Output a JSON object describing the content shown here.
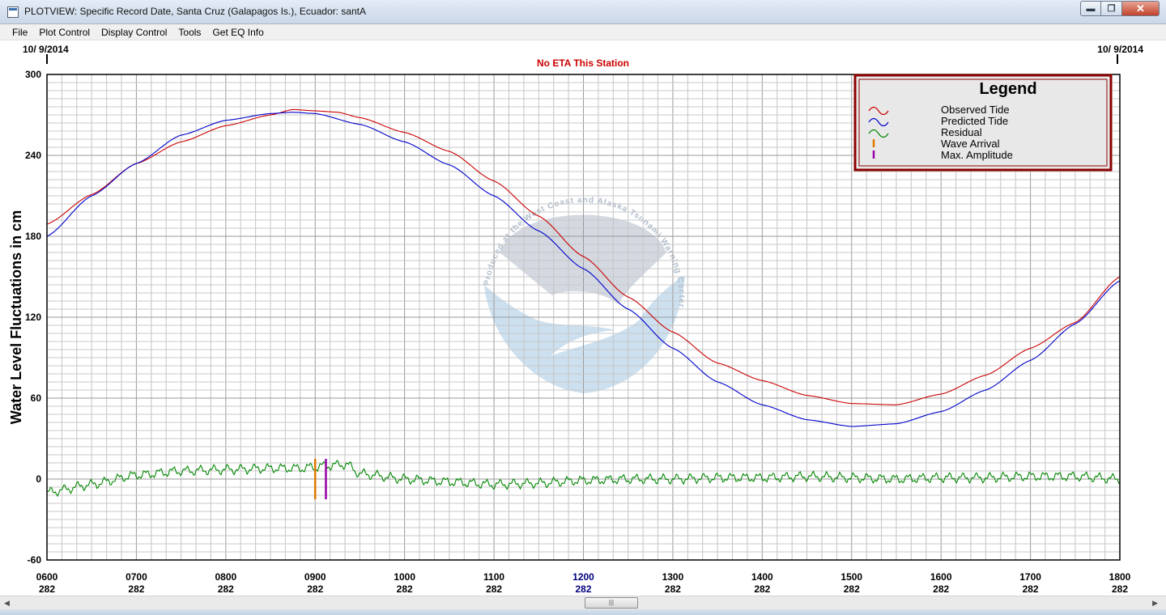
{
  "window": {
    "title": "PLOTVIEW: Specific Record Date, Santa Cruz (Galapagos Is.), Ecuador: santA",
    "buttons": {
      "minimize": "▬",
      "maximize": "❐",
      "close": "✕"
    }
  },
  "menu": [
    {
      "label": "File"
    },
    {
      "label": "Plot Control"
    },
    {
      "label": "Display Control"
    },
    {
      "label": "Tools"
    },
    {
      "label": "Get EQ Info"
    }
  ],
  "plot": {
    "date_left": "10/ 9/2014",
    "date_right": "10/ 9/2014",
    "eta_text": "No ETA This Station",
    "ylabel": "Water Level Fluctuations in cm",
    "y_ticks": [
      "300",
      "240",
      "180",
      "120",
      "60",
      "0",
      "-60"
    ],
    "x_ticks": [
      {
        "time": "0600",
        "day": "282"
      },
      {
        "time": "0700",
        "day": "282"
      },
      {
        "time": "0800",
        "day": "282"
      },
      {
        "time": "0900",
        "day": "282"
      },
      {
        "time": "1000",
        "day": "282"
      },
      {
        "time": "1100",
        "day": "282"
      },
      {
        "time": "1200",
        "day": "282"
      },
      {
        "time": "1300",
        "day": "282"
      },
      {
        "time": "1400",
        "day": "282"
      },
      {
        "time": "1500",
        "day": "282"
      },
      {
        "time": "1600",
        "day": "282"
      },
      {
        "time": "1700",
        "day": "282"
      },
      {
        "time": "1800",
        "day": "282"
      }
    ],
    "highlight_tick_color": "#00007f",
    "watermark_ring_text": "Produced at the West Coast and Alaska Tsunami Warning Center"
  },
  "legend": {
    "title": "Legend",
    "items": [
      {
        "label": "Observed Tide",
        "color": "#cc0000",
        "kind": "wave"
      },
      {
        "label": "Predicted Tide",
        "color": "#0000cc",
        "kind": "wave"
      },
      {
        "label": "Residual",
        "color": "#008800",
        "kind": "wave"
      },
      {
        "label": "Wave Arrival",
        "color": "#e07800",
        "kind": "bar"
      },
      {
        "label": "Max. Amplitude",
        "color": "#9900aa",
        "kind": "bar"
      }
    ]
  },
  "chart_data": {
    "type": "line",
    "ylim": [
      -60,
      300
    ],
    "xlim_hours": [
      6,
      18
    ],
    "y_major_step": 60,
    "series": [
      {
        "name": "Observed Tide",
        "color": "#cc0000",
        "x": [
          6.0,
          6.5,
          7.0,
          7.5,
          8.0,
          8.5,
          8.75,
          9.0,
          9.25,
          9.5,
          10.0,
          10.5,
          11.0,
          11.5,
          12.0,
          12.5,
          13.0,
          13.5,
          14.0,
          14.5,
          15.0,
          15.5,
          16.0,
          16.5,
          17.0,
          17.5,
          18.0
        ],
        "values": [
          189,
          211,
          234,
          250,
          262,
          270,
          274,
          273,
          272,
          268,
          257,
          243,
          221,
          195,
          165,
          135,
          109,
          86,
          73,
          62,
          56,
          55,
          63,
          77,
          97,
          116,
          150
        ]
      },
      {
        "name": "Predicted Tide",
        "color": "#0000cc",
        "x": [
          6.0,
          6.5,
          7.0,
          7.5,
          8.0,
          8.5,
          8.75,
          9.0,
          9.5,
          10.0,
          10.5,
          11.0,
          11.5,
          12.0,
          12.5,
          13.0,
          13.5,
          14.0,
          14.5,
          15.0,
          15.5,
          16.0,
          16.5,
          17.0,
          17.5,
          18.0
        ],
        "values": [
          180,
          210,
          234,
          255,
          266,
          271,
          272,
          271,
          263,
          250,
          233,
          210,
          184,
          156,
          126,
          97,
          72,
          55,
          44,
          39,
          41,
          50,
          66,
          88,
          115,
          147
        ]
      },
      {
        "name": "Residual",
        "color": "#008800",
        "x": [
          6.0,
          6.5,
          7.0,
          7.5,
          8.0,
          8.5,
          8.85,
          9.0,
          9.15,
          9.35,
          9.5,
          10.0,
          10.5,
          11.0,
          11.5,
          12.0,
          12.5,
          13.0,
          13.5,
          14.0,
          14.5,
          15.0,
          15.5,
          16.0,
          16.5,
          17.0,
          17.5,
          18.0
        ],
        "values": [
          -10,
          -4,
          3,
          6,
          7,
          8,
          8,
          9,
          10,
          11,
          4,
          0,
          -2,
          -4,
          -3,
          -1,
          0,
          0,
          1,
          1,
          2,
          1,
          0,
          1,
          1,
          2,
          2,
          0
        ]
      }
    ],
    "markers": [
      {
        "name": "Wave Arrival",
        "x": 9.0,
        "ymin": -15,
        "ymax": 15,
        "color": "#e07800"
      },
      {
        "name": "Max. Amplitude",
        "x": 9.12,
        "ymin": -15,
        "ymax": 15,
        "color": "#9900aa"
      }
    ]
  }
}
